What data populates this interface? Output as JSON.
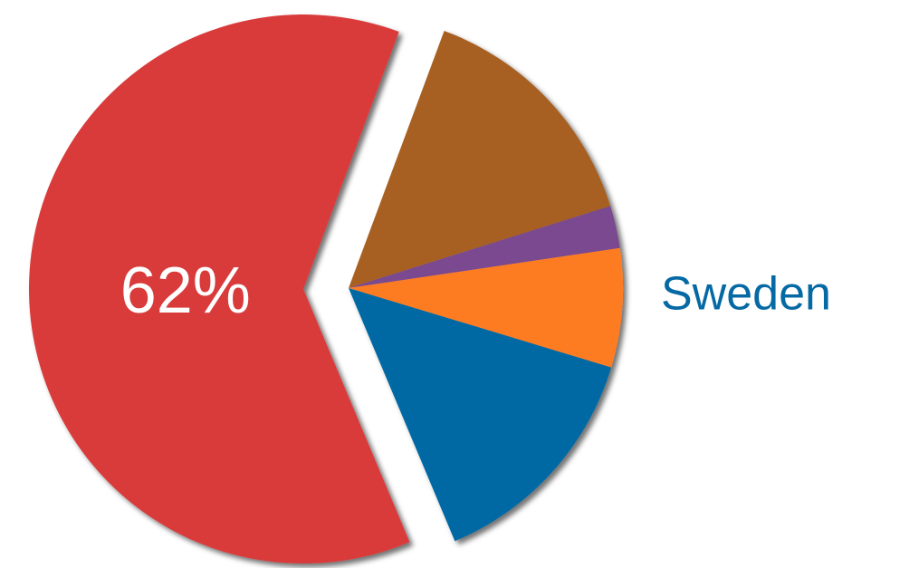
{
  "chart_data": {
    "type": "pie",
    "categories": [
      null,
      null,
      null,
      "Sweden",
      null
    ],
    "values": [
      14.5,
      2.5,
      7,
      14,
      62
    ],
    "value_labels": [
      null,
      null,
      null,
      null,
      "62%"
    ],
    "colors": [
      "#a86121",
      "#7a4a8f",
      "#fd7b22",
      "#0569a4",
      "#d93a3b"
    ],
    "explode": [
      false,
      false,
      false,
      false,
      true
    ]
  }
}
